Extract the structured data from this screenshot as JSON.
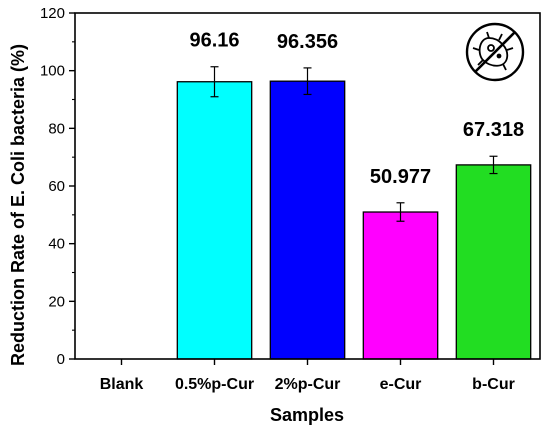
{
  "chart_data": {
    "type": "bar",
    "categories": [
      "Blank",
      "0.5%p-Cur",
      "2%p-Cur",
      "e-Cur",
      "b-Cur"
    ],
    "values": [
      0,
      96.16,
      96.356,
      50.977,
      67.318
    ],
    "data_labels": [
      "",
      "96.16",
      "96.356",
      "50.977",
      "67.318"
    ],
    "errors": [
      0,
      5.2,
      4.6,
      3.2,
      3.0
    ],
    "colors": [
      "#ffffff",
      "#00ffff",
      "#0000ff",
      "#ff00ff",
      "#22dd22"
    ],
    "xlabel": "Samples",
    "ylabel": "Reduction Rate of E. Coli bacteria (%)",
    "ylim": [
      0,
      120
    ],
    "yticks": [
      0,
      20,
      40,
      60,
      80,
      100,
      120
    ],
    "grid": false,
    "legend": "none",
    "icon": "no-bacteria-icon"
  }
}
